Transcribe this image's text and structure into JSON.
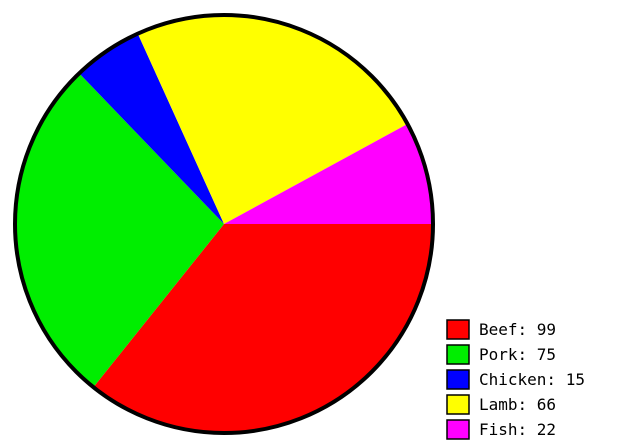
{
  "chart_data": {
    "type": "pie",
    "categories": [
      "Beef",
      "Pork",
      "Chicken",
      "Lamb",
      "Fish"
    ],
    "values": [
      99,
      75,
      15,
      66,
      22
    ],
    "colors": [
      "#ff0000",
      "#00ee00",
      "#0000ff",
      "#ffff00",
      "#ff00ff"
    ],
    "legend_labels": [
      "Beef: 99",
      "Pork: 75",
      "Chicken: 15",
      "Lamb: 66",
      "Fish: 22"
    ],
    "legend_position": "bottom-right",
    "start": "right (3 o'clock)",
    "direction": "clockwise"
  }
}
